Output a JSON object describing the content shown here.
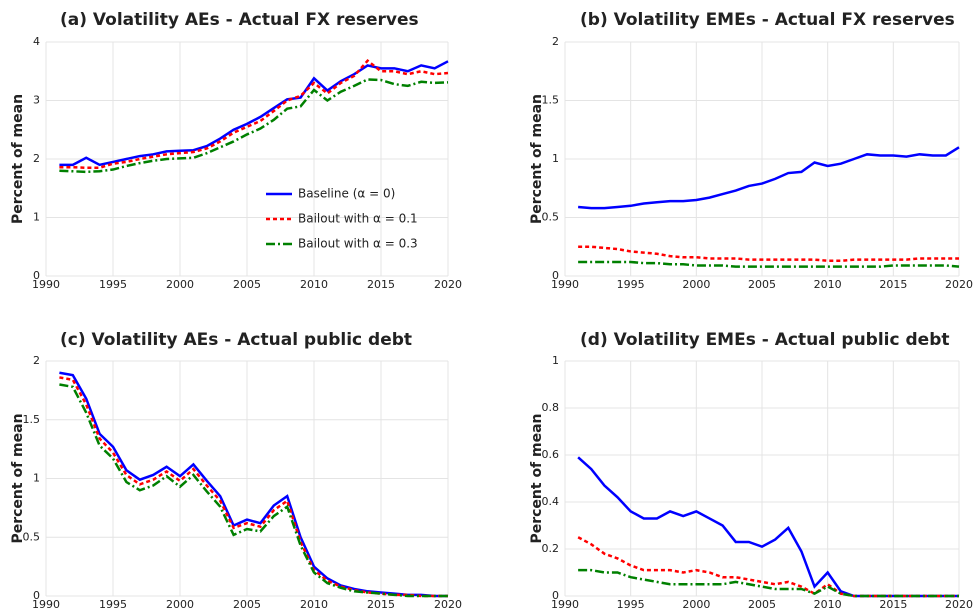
{
  "chart_data": [
    {
      "type": "line",
      "title": "(a) Volatility AEs - Actual FX reserves",
      "ylabel": "Percent of mean",
      "x": [
        1991,
        1992,
        1993,
        1994,
        1995,
        1996,
        1997,
        1998,
        1999,
        2000,
        2001,
        2002,
        2003,
        2004,
        2005,
        2006,
        2007,
        2008,
        2009,
        2010,
        2011,
        2012,
        2013,
        2014,
        2015,
        2016,
        2017,
        2018,
        2019,
        2020
      ],
      "xlim": [
        1990,
        2020
      ],
      "xticks": [
        1990,
        1995,
        2000,
        2005,
        2010,
        2015,
        2020
      ],
      "ylim": [
        0,
        4
      ],
      "yticks": [
        0,
        1,
        2,
        3,
        4
      ],
      "grid": true,
      "legend": "lower right",
      "series": [
        {
          "name": "Baseline (α = 0)",
          "color": "#0000ff",
          "linestyle": "solid",
          "values": [
            1.9,
            1.9,
            2.02,
            1.9,
            1.95,
            2.0,
            2.05,
            2.08,
            2.13,
            2.14,
            2.15,
            2.22,
            2.35,
            2.5,
            2.6,
            2.72,
            2.87,
            3.02,
            3.05,
            3.38,
            3.17,
            3.33,
            3.45,
            3.6,
            3.55,
            3.55,
            3.5,
            3.6,
            3.55,
            3.67
          ]
        },
        {
          "name": "Bailout with α = 0.1",
          "color": "#ff0000",
          "linestyle": "dotted",
          "values": [
            1.86,
            1.86,
            1.85,
            1.85,
            1.92,
            1.95,
            2.0,
            2.04,
            2.08,
            2.1,
            2.12,
            2.18,
            2.3,
            2.45,
            2.55,
            2.65,
            2.82,
            3.0,
            3.08,
            3.3,
            3.12,
            3.3,
            3.42,
            3.68,
            3.5,
            3.5,
            3.45,
            3.5,
            3.45,
            3.47
          ]
        },
        {
          "name": "Bailout with α = 0.3",
          "color": "#008000",
          "linestyle": "dashdot",
          "values": [
            1.8,
            1.79,
            1.78,
            1.79,
            1.82,
            1.88,
            1.93,
            1.97,
            2.0,
            2.01,
            2.02,
            2.1,
            2.2,
            2.3,
            2.42,
            2.52,
            2.67,
            2.86,
            2.9,
            3.18,
            3.0,
            3.15,
            3.25,
            3.36,
            3.35,
            3.28,
            3.25,
            3.32,
            3.3,
            3.31
          ]
        }
      ]
    },
    {
      "type": "line",
      "title": "(b) Volatility EMEs - Actual FX reserves",
      "ylabel": "Percent of mean",
      "x": [
        1991,
        1992,
        1993,
        1994,
        1995,
        1996,
        1997,
        1998,
        1999,
        2000,
        2001,
        2002,
        2003,
        2004,
        2005,
        2006,
        2007,
        2008,
        2009,
        2010,
        2011,
        2012,
        2013,
        2014,
        2015,
        2016,
        2017,
        2018,
        2019,
        2020
      ],
      "xlim": [
        1990,
        2020
      ],
      "xticks": [
        1990,
        1995,
        2000,
        2005,
        2010,
        2015,
        2020
      ],
      "ylim": [
        0,
        2
      ],
      "yticks": [
        0,
        0.5,
        1,
        1.5,
        2
      ],
      "grid": true,
      "series": [
        {
          "color": "#0000ff",
          "linestyle": "solid",
          "values": [
            0.59,
            0.58,
            0.58,
            0.59,
            0.6,
            0.62,
            0.63,
            0.64,
            0.64,
            0.65,
            0.67,
            0.7,
            0.73,
            0.77,
            0.79,
            0.83,
            0.88,
            0.89,
            0.97,
            0.94,
            0.96,
            1.0,
            1.04,
            1.03,
            1.03,
            1.02,
            1.04,
            1.03,
            1.03,
            1.1
          ]
        },
        {
          "color": "#ff0000",
          "linestyle": "dotted",
          "values": [
            0.25,
            0.25,
            0.24,
            0.23,
            0.21,
            0.2,
            0.19,
            0.17,
            0.16,
            0.16,
            0.15,
            0.15,
            0.15,
            0.14,
            0.14,
            0.14,
            0.14,
            0.14,
            0.14,
            0.13,
            0.13,
            0.14,
            0.14,
            0.14,
            0.14,
            0.14,
            0.15,
            0.15,
            0.15,
            0.15
          ]
        },
        {
          "color": "#008000",
          "linestyle": "dashdot",
          "values": [
            0.12,
            0.12,
            0.12,
            0.12,
            0.12,
            0.11,
            0.11,
            0.1,
            0.1,
            0.09,
            0.09,
            0.09,
            0.08,
            0.08,
            0.08,
            0.08,
            0.08,
            0.08,
            0.08,
            0.08,
            0.08,
            0.08,
            0.08,
            0.08,
            0.09,
            0.09,
            0.09,
            0.09,
            0.09,
            0.08
          ]
        }
      ]
    },
    {
      "type": "line",
      "title": "(c) Volatility AEs - Actual public debt",
      "ylabel": "Percent of mean",
      "x": [
        1991,
        1992,
        1993,
        1994,
        1995,
        1996,
        1997,
        1998,
        1999,
        2000,
        2001,
        2002,
        2003,
        2004,
        2005,
        2006,
        2007,
        2008,
        2009,
        2010,
        2011,
        2012,
        2013,
        2014,
        2015,
        2016,
        2017,
        2018,
        2019,
        2020
      ],
      "xlim": [
        1990,
        2020
      ],
      "xticks": [
        1990,
        1995,
        2000,
        2005,
        2010,
        2015,
        2020
      ],
      "ylim": [
        0,
        2
      ],
      "yticks": [
        0,
        0.5,
        1,
        1.5,
        2
      ],
      "grid": true,
      "series": [
        {
          "color": "#0000ff",
          "linestyle": "solid",
          "values": [
            1.9,
            1.88,
            1.68,
            1.38,
            1.27,
            1.07,
            0.99,
            1.03,
            1.1,
            1.02,
            1.12,
            0.98,
            0.85,
            0.6,
            0.65,
            0.62,
            0.77,
            0.85,
            0.5,
            0.25,
            0.15,
            0.09,
            0.06,
            0.04,
            0.03,
            0.02,
            0.01,
            0.01,
            0,
            0
          ]
        },
        {
          "color": "#ff0000",
          "linestyle": "dotted",
          "values": [
            1.86,
            1.84,
            1.63,
            1.34,
            1.22,
            1.03,
            0.95,
            0.99,
            1.06,
            0.98,
            1.08,
            0.94,
            0.81,
            0.58,
            0.62,
            0.59,
            0.73,
            0.81,
            0.46,
            0.22,
            0.13,
            0.08,
            0.05,
            0.03,
            0.02,
            0.01,
            0.01,
            0,
            0,
            0
          ]
        },
        {
          "color": "#008000",
          "linestyle": "dashdot",
          "values": [
            1.8,
            1.78,
            1.56,
            1.28,
            1.17,
            0.97,
            0.9,
            0.94,
            1.02,
            0.93,
            1.03,
            0.89,
            0.76,
            0.52,
            0.57,
            0.55,
            0.68,
            0.76,
            0.43,
            0.2,
            0.11,
            0.07,
            0.04,
            0.03,
            0.02,
            0.01,
            0,
            0,
            0,
            0
          ]
        }
      ]
    },
    {
      "type": "line",
      "title": "(d) Volatility EMEs - Actual public debt",
      "ylabel": "Percent of mean",
      "x": [
        1991,
        1992,
        1993,
        1994,
        1995,
        1996,
        1997,
        1998,
        1999,
        2000,
        2001,
        2002,
        2003,
        2004,
        2005,
        2006,
        2007,
        2008,
        2009,
        2010,
        2011,
        2012,
        2013,
        2014,
        2015,
        2016,
        2017,
        2018,
        2019,
        2020
      ],
      "xlim": [
        1990,
        2020
      ],
      "xticks": [
        1990,
        1995,
        2000,
        2005,
        2010,
        2015,
        2020
      ],
      "ylim": [
        0,
        1
      ],
      "yticks": [
        0,
        0.2,
        0.4,
        0.6,
        0.8,
        1
      ],
      "grid": true,
      "series": [
        {
          "color": "#0000ff",
          "linestyle": "solid",
          "values": [
            0.59,
            0.54,
            0.47,
            0.42,
            0.36,
            0.33,
            0.33,
            0.36,
            0.34,
            0.36,
            0.33,
            0.3,
            0.23,
            0.23,
            0.21,
            0.24,
            0.29,
            0.19,
            0.04,
            0.1,
            0.02,
            0,
            0,
            0,
            0,
            0,
            0,
            0,
            0,
            0
          ]
        },
        {
          "color": "#ff0000",
          "linestyle": "dotted",
          "values": [
            0.25,
            0.22,
            0.18,
            0.16,
            0.13,
            0.11,
            0.11,
            0.11,
            0.1,
            0.11,
            0.1,
            0.08,
            0.08,
            0.07,
            0.06,
            0.05,
            0.06,
            0.04,
            0.01,
            0.05,
            0.01,
            0,
            0,
            0,
            0,
            0,
            0,
            0,
            0,
            0
          ]
        },
        {
          "color": "#008000",
          "linestyle": "dashdot",
          "values": [
            0.11,
            0.11,
            0.1,
            0.1,
            0.08,
            0.07,
            0.06,
            0.05,
            0.05,
            0.05,
            0.05,
            0.05,
            0.06,
            0.05,
            0.04,
            0.03,
            0.03,
            0.03,
            0.01,
            0.04,
            0.01,
            0,
            0,
            0,
            0,
            0,
            0,
            0,
            0,
            0
          ]
        }
      ]
    }
  ]
}
